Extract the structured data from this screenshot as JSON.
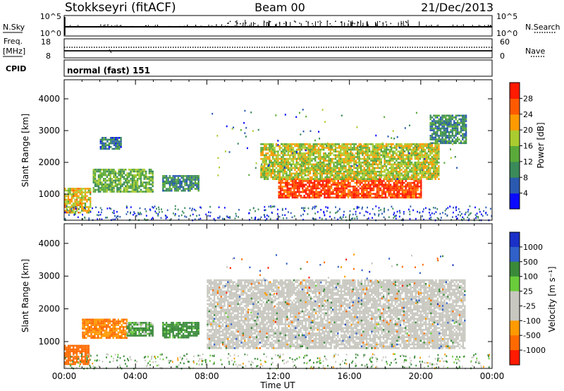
{
  "header": {
    "station": "Stokkseyri (fitACF)",
    "beam": "Beam 00",
    "date": "21/Dec/2013"
  },
  "strips": {
    "nsky_label": "N.Sky",
    "nsearch_label": "N.Search",
    "left_ticks": [
      "10^5",
      "10^0"
    ],
    "right_ticks": [
      "10^5",
      "10^0"
    ],
    "freq_label": "Freq.",
    "freq_unit": "[MHz]",
    "freq_ticks": [
      "18",
      "8"
    ],
    "nave_label": "Nave",
    "nave_ticks": [
      "60",
      "0"
    ],
    "cpid_label": "CPID",
    "cpid_value": "normal (fast) 151"
  },
  "colors": {
    "power_scale": [
      "#0a0aff",
      "#2a5ab0",
      "#3a8a5a",
      "#5aaa3a",
      "#aacc30",
      "#ff9a00",
      "#ff5a00",
      "#ff1a00"
    ],
    "velocity_scale": [
      "#1a30c8",
      "#3060c8",
      "#3a8a3a",
      "#6acc3a",
      "#c8c8c0",
      "#c8c8c0",
      "#ff9a00",
      "#ff6a00",
      "#ff1a00"
    ],
    "ground_scatter": "#c8c8c0"
  },
  "chart_data": [
    {
      "type": "heatmap",
      "name": "power",
      "ylabel": "Slant Range [km]",
      "yticks": [
        "1000",
        "2000",
        "3000",
        "4000"
      ],
      "xticks": [
        "00:00",
        "04:00",
        "08:00",
        "12:00",
        "16:00",
        "20:00",
        "00:00"
      ],
      "ylim": [
        180,
        4600
      ],
      "colorbar": {
        "label": "Power [dB]",
        "ticks": [
          "4",
          "8",
          "12",
          "16",
          "20",
          "24",
          "28"
        ],
        "range": [
          0,
          32
        ]
      },
      "features": [
        {
          "t0": 0.0,
          "t1": 1.5,
          "r0": 400,
          "r1": 1200,
          "level": 20
        },
        {
          "t0": 1.6,
          "t1": 5.0,
          "r0": 1100,
          "r1": 1800,
          "level": 14
        },
        {
          "t0": 2.0,
          "t1": 3.2,
          "r0": 2400,
          "r1": 2800,
          "level": 8
        },
        {
          "t0": 5.5,
          "t1": 7.5,
          "r0": 1100,
          "r1": 1600,
          "level": 10
        },
        {
          "t0": 12.0,
          "t1": 20.0,
          "r0": 900,
          "r1": 1500,
          "level": 28
        },
        {
          "t0": 11.0,
          "t1": 21.0,
          "r0": 1500,
          "r1": 2600,
          "level": 18
        },
        {
          "t0": 20.5,
          "t1": 22.5,
          "r0": 2600,
          "r1": 3500,
          "level": 10
        }
      ]
    },
    {
      "type": "heatmap",
      "name": "velocity",
      "ylabel": "Slant Range [km]",
      "yticks": [
        "1000",
        "2000",
        "3000",
        "4000"
      ],
      "xticks": [
        "00:00",
        "04:00",
        "08:00",
        "12:00",
        "16:00",
        "20:00",
        "00:00"
      ],
      "xlabel": "Time UT",
      "ylim": [
        180,
        4600
      ],
      "colorbar": {
        "label": "Velocity [m s⁻¹]",
        "ticks": [
          "1000",
          "500",
          "100",
          "25",
          "-25",
          "-100",
          "-500",
          "-1000"
        ],
        "range": [
          -1200,
          1200
        ]
      },
      "features": [
        {
          "t0": 0.0,
          "t1": 1.4,
          "r0": 300,
          "r1": 900,
          "velocity": -500
        },
        {
          "t0": 1.0,
          "t1": 3.5,
          "r0": 1100,
          "r1": 1700,
          "velocity": -300
        },
        {
          "t0": 3.5,
          "t1": 5.0,
          "r0": 1200,
          "r1": 1600,
          "velocity": 100
        },
        {
          "t0": 5.5,
          "t1": 7.5,
          "r0": 1100,
          "r1": 1600,
          "velocity": 150
        },
        {
          "t0": 8.0,
          "t1": 22.5,
          "r0": 800,
          "r1": 2900,
          "velocity": 0,
          "ground_scatter": true
        }
      ]
    }
  ]
}
